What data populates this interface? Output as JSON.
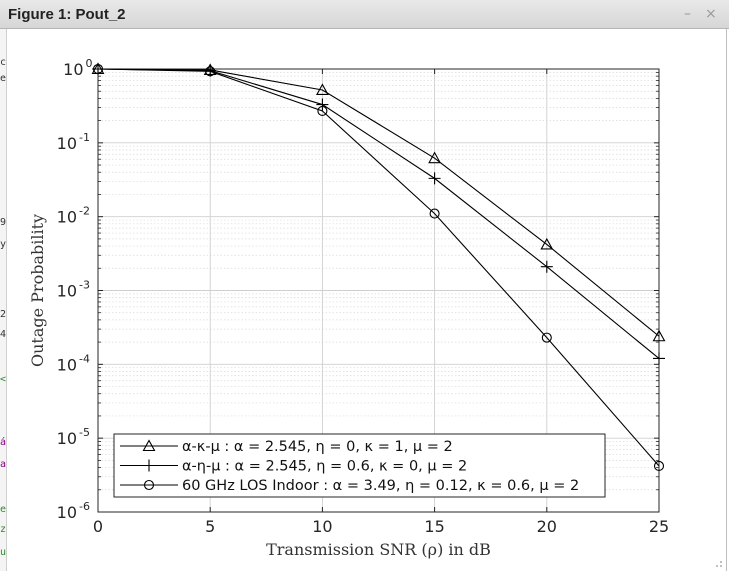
{
  "window": {
    "title": "Figure 1: Pout_2",
    "minimize_glyph": "–",
    "close_glyph": "×"
  },
  "left_strip": {
    "chars": [
      {
        "ch": "c",
        "color": "#333333"
      },
      {
        "ch": "e",
        "color": "#333333"
      },
      {
        "ch": "9",
        "color": "#333333"
      },
      {
        "ch": "y",
        "color": "#333333"
      },
      {
        "ch": "2",
        "color": "#333333"
      },
      {
        "ch": "4",
        "color": "#333333"
      },
      {
        "ch": "<",
        "color": "#2e8b2e"
      },
      {
        "ch": "á",
        "color": "#8b008b"
      },
      {
        "ch": "a",
        "color": "#8b008b"
      },
      {
        "ch": "e",
        "color": "#2e8b2e"
      },
      {
        "ch": "z",
        "color": "#2e8b2e"
      },
      {
        "ch": "u",
        "color": "#2e8b2e"
      }
    ]
  },
  "chart_data": {
    "type": "line",
    "xlabel": "Transmission SNR (ρ) in dB",
    "ylabel": "Outage Probability",
    "xlim": [
      0,
      25
    ],
    "ylim": [
      1e-06,
      1
    ],
    "yscale": "log",
    "grid": true,
    "minor_grid": true,
    "x_ticks": [
      "0",
      "5",
      "10",
      "15",
      "20",
      "25"
    ],
    "y_ticks": [
      {
        "exp": "0"
      },
      {
        "exp": "-1"
      },
      {
        "exp": "-2"
      },
      {
        "exp": "-3"
      },
      {
        "exp": "-4"
      },
      {
        "exp": "-5"
      },
      {
        "exp": "-6"
      }
    ],
    "y_tick_base": "10",
    "legend_position": "bottom-left",
    "x": [
      0,
      5,
      10,
      15,
      20,
      25
    ],
    "series": [
      {
        "name": "α-κ-μ : α = 2.545, η = 0, κ = 1, μ = 2",
        "marker": "triangle",
        "values": [
          1,
          0.97,
          0.52,
          0.062,
          0.0042,
          0.00024
        ]
      },
      {
        "name": "α-η-μ : α = 2.545, η = 0.6, κ = 0, μ = 2",
        "marker": "plus",
        "values": [
          1,
          0.95,
          0.33,
          0.033,
          0.0021,
          0.00012
        ]
      },
      {
        "name": "60 GHz LOS Indoor : α = 3.49, η = 0.12, κ = 0.6, μ = 2",
        "marker": "circle",
        "values": [
          1,
          0.93,
          0.27,
          0.011,
          0.00023,
          4.2e-06
        ]
      }
    ],
    "colors": {
      "line": "#000000",
      "grid": "#d9d9d9",
      "axes": "#262626"
    }
  }
}
